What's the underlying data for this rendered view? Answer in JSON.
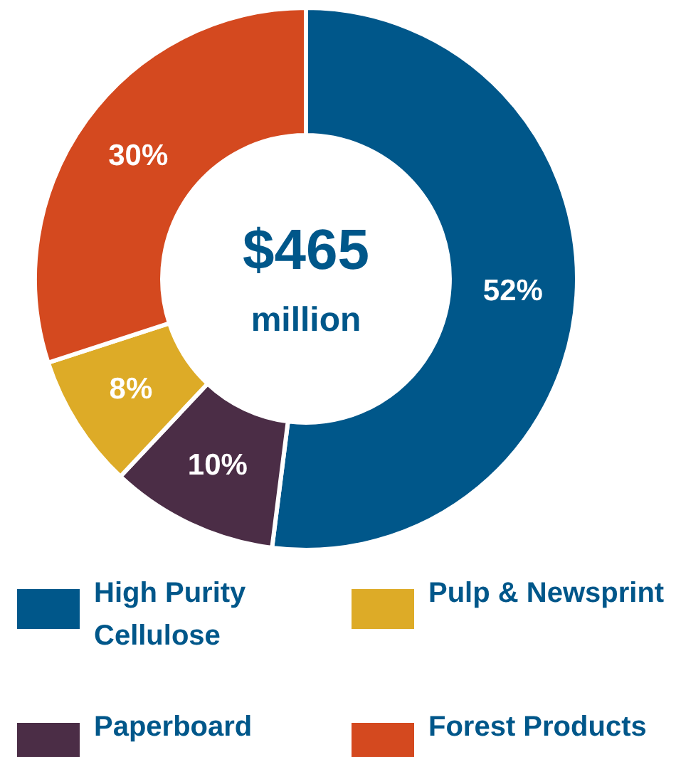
{
  "chart_data": {
    "type": "donut",
    "categories": [
      "High Purity Cellulose",
      "Paperboard",
      "Pulp & Newsprint",
      "Forest Products"
    ],
    "values": [
      52,
      10,
      8,
      30
    ],
    "colors": [
      "#00578a",
      "#4b2d46",
      "#ddab27",
      "#d4491f"
    ],
    "value_labels": [
      "52%",
      "10%",
      "8%",
      "30%"
    ],
    "annotations": [
      "$465",
      "million"
    ],
    "legend": "bottom"
  }
}
